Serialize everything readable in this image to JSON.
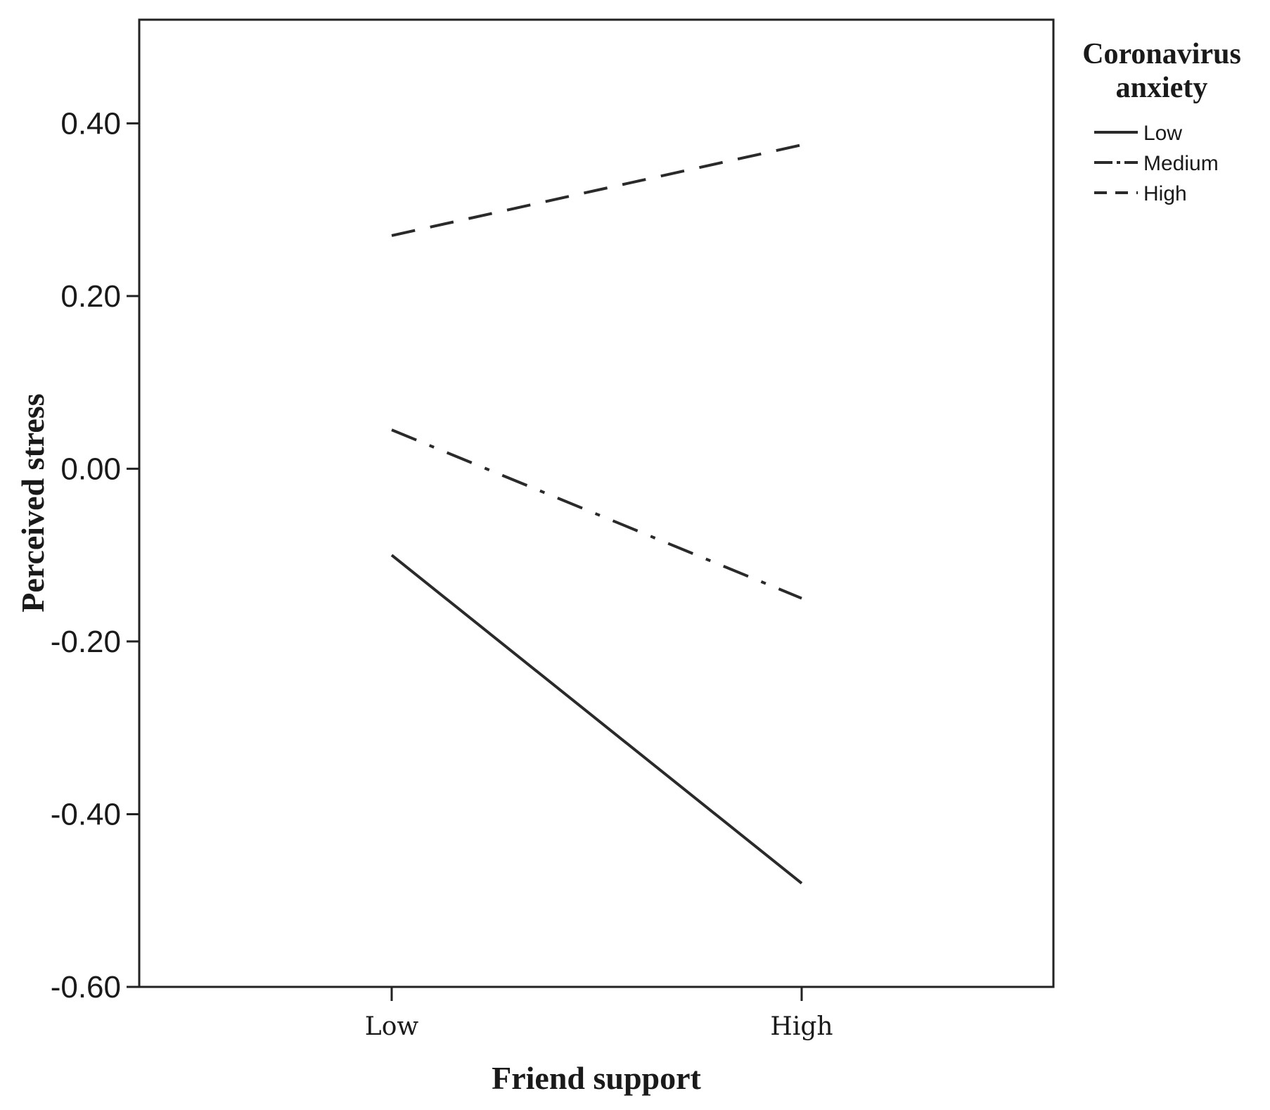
{
  "chart_data": {
    "type": "line",
    "xlabel": "Friend support",
    "ylabel": "Perceived stress",
    "categories": [
      "Low",
      "High"
    ],
    "ylim": [
      -0.6,
      0.52
    ],
    "yticks": [
      {
        "value": 0.4,
        "label": "0.40"
      },
      {
        "value": 0.2,
        "label": "0.20"
      },
      {
        "value": 0.0,
        "label": "0.00"
      },
      {
        "value": -0.2,
        "label": "-0.20"
      },
      {
        "value": -0.4,
        "label": "-0.40"
      },
      {
        "value": -0.6,
        "label": "-0.60"
      }
    ],
    "grid": false,
    "legend": {
      "title": "Coronavirus anxiety",
      "title_lines": [
        "Coronavirus",
        "anxiety"
      ],
      "placement": "top-right, outside plot"
    },
    "series": [
      {
        "name": "Low",
        "values": [
          -0.1,
          -0.48
        ],
        "style": "solid",
        "color": "#2a2a2a"
      },
      {
        "name": "Medium",
        "values": [
          0.045,
          -0.15
        ],
        "style": "dash-dot",
        "color": "#2a2a2a"
      },
      {
        "name": "High",
        "values": [
          0.27,
          0.375
        ],
        "style": "dashed",
        "color": "#2a2a2a"
      }
    ]
  }
}
